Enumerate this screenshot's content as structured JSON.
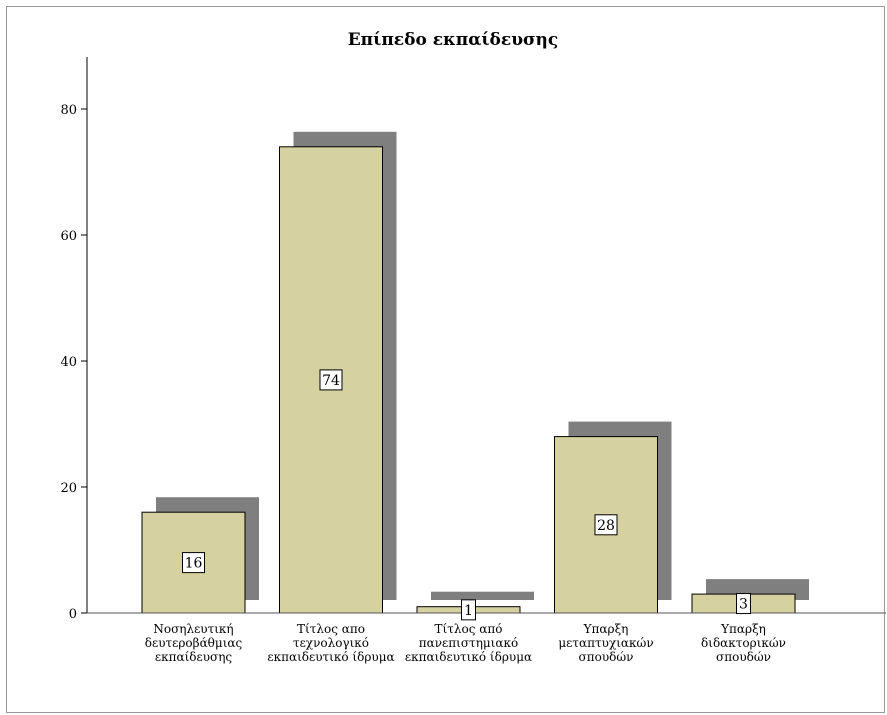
{
  "chart_data": {
    "type": "bar",
    "title": "Επίπεδο εκπαίδευσης",
    "categories": [
      [
        "Νοσηλευτική",
        "δευτεροβάθμιας",
        "εκπαίδευσης"
      ],
      [
        "Τίτλος απο",
        "τεχνολογικό",
        "εκπαιδευτικό ίδρυμα"
      ],
      [
        "Τίτλος από",
        "πανεπιστημιακό",
        "εκπαιδευτικό ίδρυμα"
      ],
      [
        "Υπαρξη",
        "μεταπτυχιακών",
        "σπουδών"
      ],
      [
        "Υπαρξη",
        "διδακτορικών",
        "σπουδών"
      ]
    ],
    "values": [
      16,
      74,
      1,
      28,
      3
    ],
    "data_labels": [
      "16",
      "74",
      "1",
      "28",
      "3"
    ],
    "yticks": [
      "0",
      "20",
      "40",
      "60",
      "80"
    ],
    "ytick_values": [
      0,
      20,
      40,
      60,
      80
    ],
    "ylim": [
      0,
      80
    ],
    "grid": false,
    "colors": {
      "bar_fill": "#d6d1a0",
      "bar_stroke": "#000000",
      "shadow": "#7f7f7f",
      "axis": "#000000"
    }
  }
}
